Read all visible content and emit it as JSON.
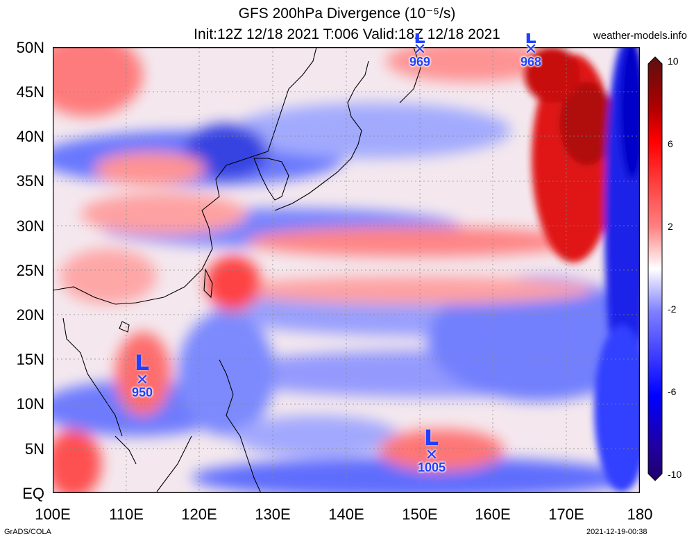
{
  "header": {
    "title_line1": "GFS 200hPa Divergence (10⁻⁵/s)",
    "title_line2": "Init:12Z 12/18 2021 T:006 Valid:18Z 12/18 2021",
    "site": "weather-models.info"
  },
  "axes": {
    "y_labels": [
      "50N",
      "45N",
      "40N",
      "35N",
      "30N",
      "25N",
      "20N",
      "15N",
      "10N",
      "5N",
      "EQ"
    ],
    "x_labels": [
      "100E",
      "110E",
      "120E",
      "130E",
      "140E",
      "150E",
      "160E",
      "170E",
      "180"
    ]
  },
  "colorbar": {
    "labels": [
      "10",
      "6",
      "2",
      "-2",
      "-6",
      "-10"
    ],
    "colors": [
      "#5a1010",
      "#b00000",
      "#ff0000",
      "#ff8080",
      "#ffffff",
      "#8080ff",
      "#0000ff",
      "#20006a"
    ]
  },
  "lows": [
    {
      "pressure": "969"
    },
    {
      "pressure": "968"
    },
    {
      "pressure": "950"
    },
    {
      "pressure": "1005"
    }
  ],
  "low_letter": "L",
  "low_marker": "✕",
  "footer": {
    "left": "GrADS/COLA",
    "right": "2021-12-19-00:38"
  }
}
